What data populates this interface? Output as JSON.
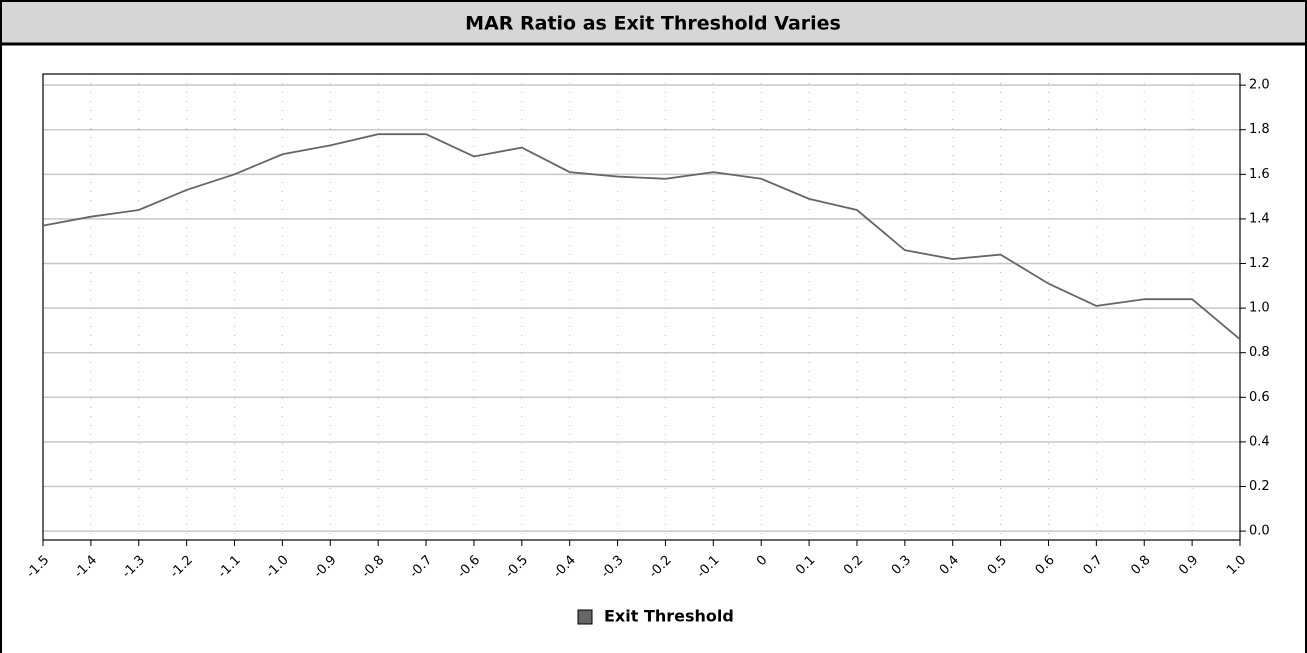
{
  "chart_data": {
    "type": "line",
    "title": "MAR Ratio as Exit Threshold Varies",
    "x": [
      -1.5,
      -1.4,
      -1.3,
      -1.2,
      -1.1,
      -1.0,
      -0.9,
      -0.8,
      -0.7,
      -0.6,
      -0.5,
      -0.4,
      -0.3,
      -0.2,
      -0.1,
      0,
      0.1,
      0.2,
      0.3,
      0.4,
      0.5,
      0.6,
      0.7,
      0.8,
      0.9,
      1.0
    ],
    "series": [
      {
        "name": "Exit Threshold",
        "color": "#666666",
        "values": [
          1.37,
          1.41,
          1.44,
          1.53,
          1.6,
          1.69,
          1.73,
          1.78,
          1.78,
          1.68,
          1.72,
          1.61,
          1.59,
          1.58,
          1.61,
          1.58,
          1.49,
          1.44,
          1.26,
          1.22,
          1.24,
          1.11,
          1.01,
          1.04,
          1.04,
          0.86
        ]
      }
    ],
    "xlim": [
      -1.5,
      1.0
    ],
    "xticks": [
      -1.5,
      -1.4,
      -1.3,
      -1.2,
      -1.1,
      {
        "value": -1,
        "label": "-1.0"
      },
      -0.9,
      -0.8,
      -0.7,
      -0.6,
      -0.5,
      -0.4,
      -0.3,
      -0.2,
      -0.1,
      0,
      0.1,
      0.2,
      0.3,
      0.4,
      0.5,
      0.6,
      0.7,
      0.8,
      0.9,
      {
        "value": 1,
        "label": "1.0"
      }
    ],
    "ylim": [
      -0.04,
      2.05
    ],
    "yticks": [
      {
        "value": 0,
        "label": "0.0"
      },
      0.2,
      0.4,
      0.6,
      0.8,
      {
        "value": 1,
        "label": "1.0"
      },
      1.2,
      1.4,
      1.6,
      1.8,
      {
        "value": 2,
        "label": "2.0"
      }
    ],
    "yaxis_side": "right",
    "grid": true,
    "legend": "bottom"
  }
}
